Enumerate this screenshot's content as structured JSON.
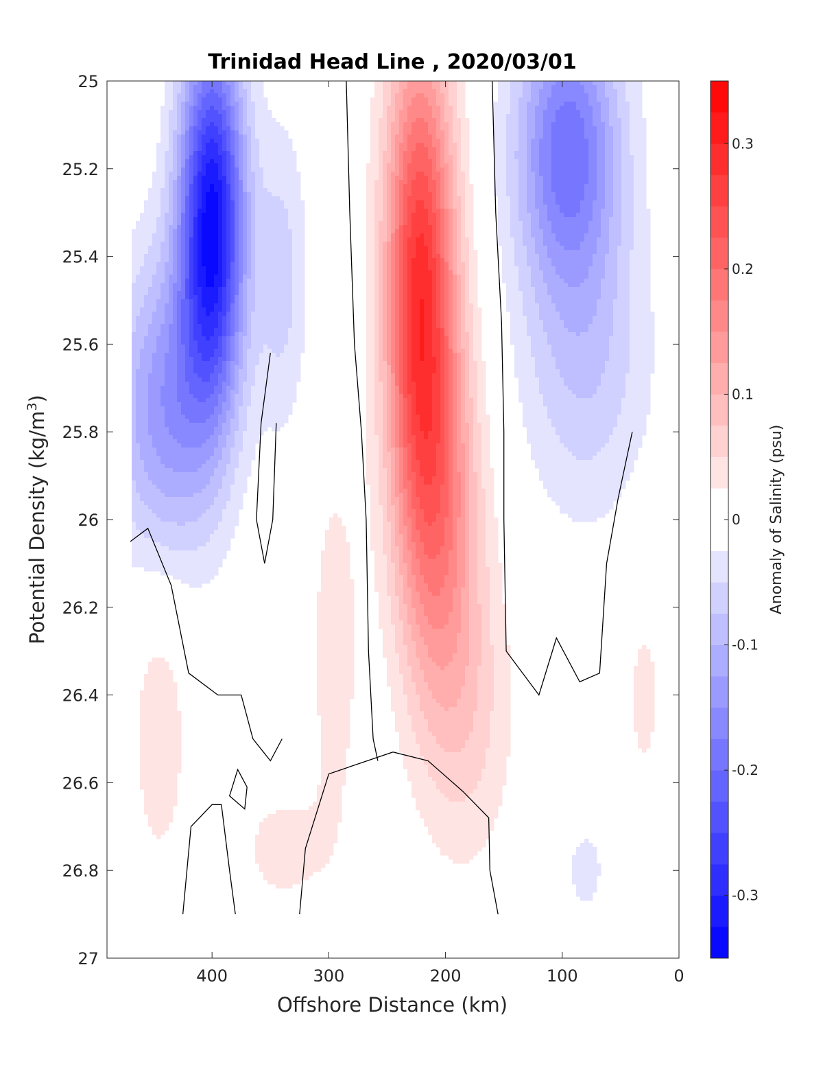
{
  "chart_data": {
    "type": "contour",
    "title": "Trinidad Head Line , 2020/03/01",
    "xlabel": "Offshore Distance (km)",
    "ylabel_main": "Potential Density (kg/m",
    "ylabel_sup": "3",
    "ylabel_close": ")",
    "xlim": [
      490,
      0
    ],
    "ylim": [
      25,
      27
    ],
    "y_reversed": true,
    "x_reversed": true,
    "xticks": [
      "400",
      "300",
      "200",
      "100",
      "0"
    ],
    "yticks": [
      "25",
      "25.2",
      "25.4",
      "25.6",
      "25.8",
      "26",
      "26.2",
      "26.4",
      "26.6",
      "26.8",
      "27"
    ],
    "colorbar": {
      "label": "Anomaly of Salinity (psu)",
      "range": [
        -0.35,
        0.35
      ],
      "step": 0.025,
      "ticks": [
        "0.3",
        "0.2",
        "0.1",
        "0",
        "-0.1",
        "-0.2",
        "-0.3"
      ],
      "colormap": "blue-white-red"
    },
    "features": [
      {
        "name": "offshore fresh core",
        "x_center": 400,
        "y_center": 25.3,
        "peak": -0.31
      },
      {
        "name": "central salty core",
        "x_center": 220,
        "y_center": 25.45,
        "peak": 0.27
      },
      {
        "name": "nearshore fresh band",
        "x_center": 100,
        "y_center": 25.2,
        "peak": -0.19
      }
    ]
  }
}
